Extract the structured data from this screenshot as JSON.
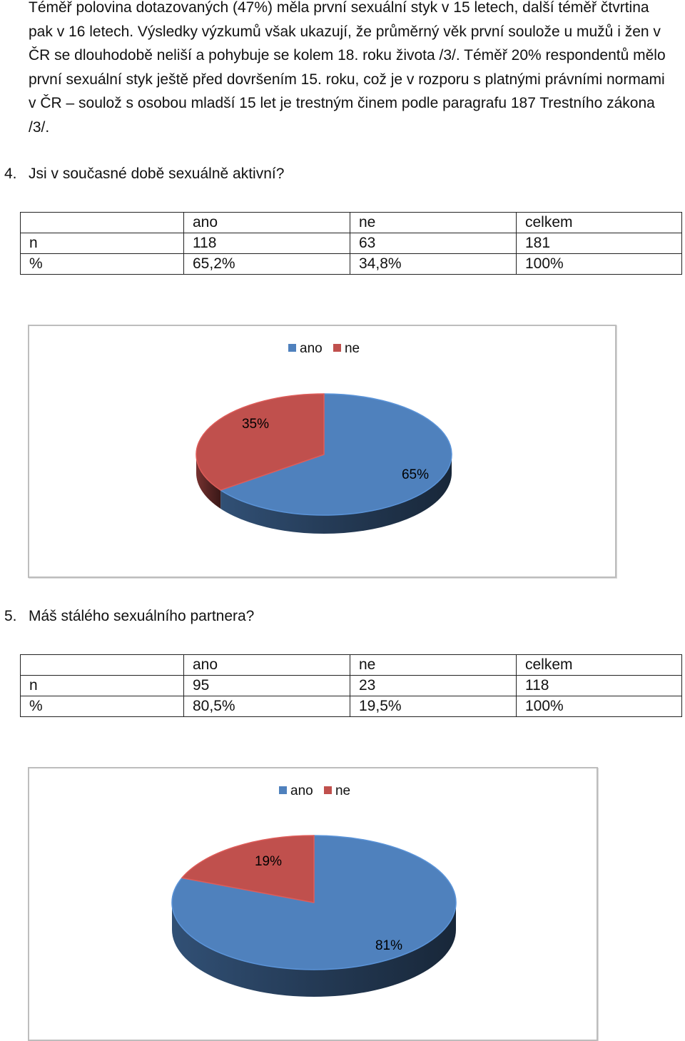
{
  "intro": {
    "text": "Téměř polovina dotazovaných (47%) měla první sexuální styk v 15 letech, další téměř čtvrtina pak v 16 letech. Výsledky výzkumů však ukazují, že průměrný věk první soulože u mužů i žen v ČR se dlouhodobě neliší a pohybuje se kolem 18. roku života /3/. Téměř 20% respondentů mělo první sexuální styk ještě před dovršením 15. roku, což je v rozporu s platnými právními normami v ČR – soulož s osobou mladší 15 let je trestným činem podle paragrafu 187 Trestního zákona /3/."
  },
  "q4": {
    "number": "4.",
    "question": "Jsi v současné době sexuálně aktivní?",
    "table": {
      "header": [
        "",
        "ano",
        "ne",
        "celkem"
      ],
      "rows": [
        [
          "n",
          "118",
          "63",
          "181"
        ],
        [
          "%",
          "65,2%",
          "34,8%",
          "100%"
        ]
      ]
    },
    "chart": {
      "legend": [
        "ano",
        "ne"
      ],
      "labels": [
        "65%",
        "35%"
      ]
    }
  },
  "q5": {
    "number": "5.",
    "question": "Máš stálého sexuálního partnera?",
    "table": {
      "header": [
        "",
        "ano",
        "ne",
        "celkem"
      ],
      "rows": [
        [
          "n",
          "95",
          "23",
          "118"
        ],
        [
          "%",
          "80,5%",
          "19,5%",
          "100%"
        ]
      ]
    },
    "chart": {
      "legend": [
        "ano",
        "ne"
      ],
      "labels": [
        "81%",
        "19%"
      ]
    }
  },
  "colors": {
    "ano": "#4f81bd",
    "ne": "#c0504d"
  },
  "chart_data": [
    {
      "type": "pie",
      "categories": [
        "ano",
        "ne"
      ],
      "values": [
        65,
        35
      ],
      "title": "",
      "legend": "top"
    },
    {
      "type": "pie",
      "categories": [
        "ano",
        "ne"
      ],
      "values": [
        81,
        19
      ],
      "title": "",
      "legend": "top"
    }
  ]
}
